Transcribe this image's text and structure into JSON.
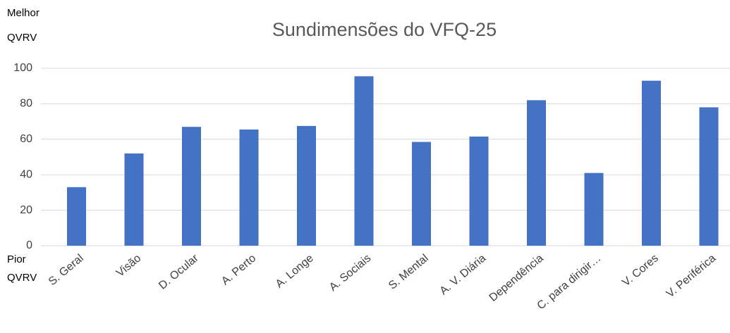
{
  "chart_data": {
    "type": "bar",
    "title": "Sundimensões do VFQ-25",
    "annotations": [
      "Melhor",
      "QVRV",
      "Pior",
      "QVRV"
    ],
    "categories": [
      "S. Geral",
      "Visão",
      "D. Ocular",
      "A. Perto",
      "A. Longe",
      "A. Sociais",
      "S. Mental",
      "A. V. Diária",
      "Dependência",
      "C. para dirigir…",
      "V. Cores",
      "V. Periférica"
    ],
    "values": [
      33,
      52,
      67,
      65.5,
      67.5,
      95.5,
      58.5,
      61.5,
      82,
      41,
      93,
      78
    ],
    "color": "#4472c4",
    "ylim": [
      0,
      100
    ],
    "yticks": [
      0,
      20,
      40,
      60,
      80,
      100
    ],
    "grid": true
  }
}
